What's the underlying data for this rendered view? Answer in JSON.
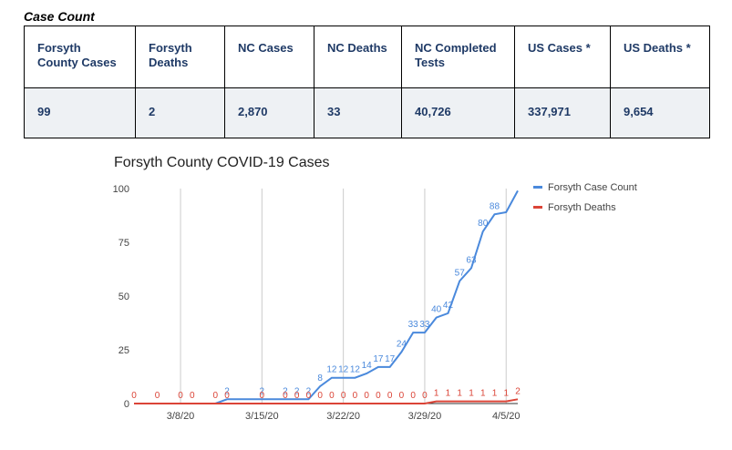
{
  "section_title": "Case Count",
  "table": {
    "headers": [
      "Forsyth County Cases",
      "Forsyth Deaths",
      "NC Cases",
      "NC Deaths",
      "NC Completed Tests",
      "US Cases *",
      "US Deaths *"
    ],
    "values": [
      "99",
      "2",
      "2,870",
      "33",
      "40,726",
      "337,971",
      "9,654"
    ]
  },
  "chart_data": {
    "type": "line",
    "title": "Forsyth County COVID-19 Cases",
    "xlabel": "",
    "ylabel": "",
    "ylim": [
      0,
      100
    ],
    "y_ticks": [
      "0",
      "25",
      "50",
      "75",
      "100"
    ],
    "x_ticks": [
      "3/8/20",
      "3/15/20",
      "3/22/20",
      "3/29/20",
      "4/5/20"
    ],
    "x": [
      "3/4/20",
      "3/5/20",
      "3/6/20",
      "3/7/20",
      "3/8/20",
      "3/9/20",
      "3/10/20",
      "3/11/20",
      "3/12/20",
      "3/13/20",
      "3/14/20",
      "3/15/20",
      "3/16/20",
      "3/17/20",
      "3/18/20",
      "3/19/20",
      "3/20/20",
      "3/21/20",
      "3/22/20",
      "3/23/20",
      "3/24/20",
      "3/25/20",
      "3/26/20",
      "3/27/20",
      "3/28/20",
      "3/29/20",
      "3/30/20",
      "3/31/20",
      "4/1/20",
      "4/2/20",
      "4/3/20",
      "4/4/20",
      "4/5/20",
      "4/6/20"
    ],
    "series": [
      {
        "name": "Forsyth Case Count",
        "color": "#4a89dc",
        "values": [
          0,
          0,
          0,
          0,
          0,
          0,
          0,
          0,
          2,
          2,
          2,
          2,
          2,
          2,
          2,
          2,
          8,
          12,
          12,
          12,
          14,
          17,
          17,
          24,
          33,
          33,
          40,
          42,
          57,
          63,
          80,
          88,
          89,
          99
        ],
        "labels": [
          "",
          "",
          "",
          "",
          "",
          "",
          "",
          "",
          "2",
          "",
          "",
          "2",
          "",
          "2",
          "2",
          "2",
          "8",
          "12",
          "12",
          "12",
          "14",
          "17",
          "17",
          "24",
          "33",
          "33",
          "40",
          "42",
          "57",
          "63",
          "80",
          "88",
          "",
          ""
        ]
      },
      {
        "name": "Forsyth Deaths",
        "color": "#db4437",
        "values": [
          0,
          0,
          0,
          0,
          0,
          0,
          0,
          0,
          0,
          0,
          0,
          0,
          0,
          0,
          0,
          0,
          0,
          0,
          0,
          0,
          0,
          0,
          0,
          0,
          0,
          0,
          1,
          1,
          1,
          1,
          1,
          1,
          1,
          2
        ],
        "labels": [
          "0",
          "",
          "0",
          "",
          "0",
          "0",
          "",
          "0",
          "0",
          "",
          "",
          "0",
          "",
          "0",
          "0",
          "0",
          "0",
          "0",
          "0",
          "0",
          "0",
          "0",
          "0",
          "0",
          "0",
          "0",
          "1",
          "1",
          "1",
          "1",
          "1",
          "1",
          "1",
          "2"
        ]
      }
    ],
    "legend": "right",
    "grid": "vertical"
  }
}
